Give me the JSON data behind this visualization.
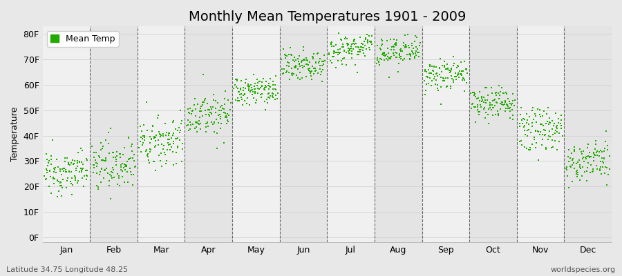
{
  "title": "Monthly Mean Temperatures 1901 - 2009",
  "ylabel": "Temperature",
  "xlabel": "",
  "months": [
    "Jan",
    "Feb",
    "Mar",
    "Apr",
    "May",
    "Jun",
    "Jul",
    "Aug",
    "Sep",
    "Oct",
    "Nov",
    "Dec"
  ],
  "yticks": [
    0,
    10,
    20,
    30,
    40,
    50,
    60,
    70,
    80
  ],
  "ytick_labels": [
    "0F",
    "10F",
    "20F",
    "30F",
    "40F",
    "50F",
    "60F",
    "70F",
    "80F"
  ],
  "ylim": [
    -2,
    83
  ],
  "dot_color": "#22aa00",
  "dot_size": 4,
  "bg_color": "#e8e8e8",
  "band_colors": [
    "#f0f0f0",
    "#e4e4e4"
  ],
  "legend_label": "Mean Temp",
  "footer_left": "Latitude 34.75 Longitude 48.25",
  "footer_right": "worldspecies.org",
  "title_fontsize": 14,
  "label_fontsize": 9,
  "footer_fontsize": 8,
  "monthly_means_f": [
    25,
    28,
    37,
    48,
    57,
    67,
    74,
    72,
    63,
    52,
    42,
    29
  ],
  "monthly_stds_f": [
    4,
    5,
    5,
    4,
    3,
    3,
    3,
    3,
    3,
    3,
    4,
    4
  ],
  "n_years": 109
}
